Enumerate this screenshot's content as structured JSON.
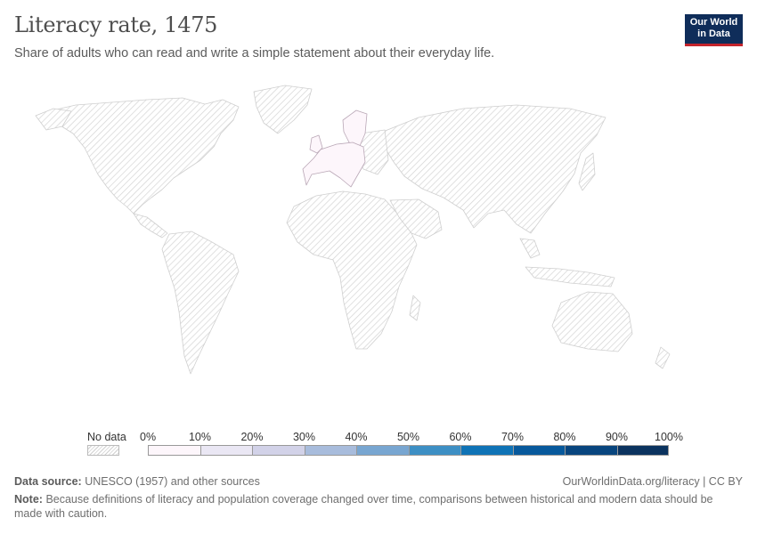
{
  "title": "Literacy rate, 1475",
  "subtitle": "Share of adults who can read and write a simple statement about their everyday life.",
  "logo": {
    "line1": "Our World",
    "line2": "in Data",
    "bg_color": "#0f2d5a",
    "accent_color": "#c4242c"
  },
  "map": {
    "projection": "world robinson-like",
    "no_data_pattern": "diagonal hatch",
    "regions_with_data": [
      {
        "region": "Western and Central Europe",
        "value_bin": "0%–10%"
      }
    ]
  },
  "legend": {
    "no_data_label": "No data",
    "tick_labels": [
      "0%",
      "10%",
      "20%",
      "30%",
      "40%",
      "50%",
      "60%",
      "70%",
      "80%",
      "90%",
      "100%"
    ],
    "colors": [
      "#fdf6fb",
      "#eae7f4",
      "#d2d2e8",
      "#a8bcdc",
      "#78a6d1",
      "#3d8fc4",
      "#0f73b6",
      "#07599c",
      "#08457e",
      "#0b335f"
    ]
  },
  "footer": {
    "source_label": "Data source:",
    "source_text": "UNESCO (1957) and other sources",
    "url": "OurWorldinData.org/literacy | CC BY",
    "note_label": "Note:",
    "note_text": "Because definitions of literacy and population coverage changed over time, comparisons between historical and modern data should be made with caution."
  }
}
